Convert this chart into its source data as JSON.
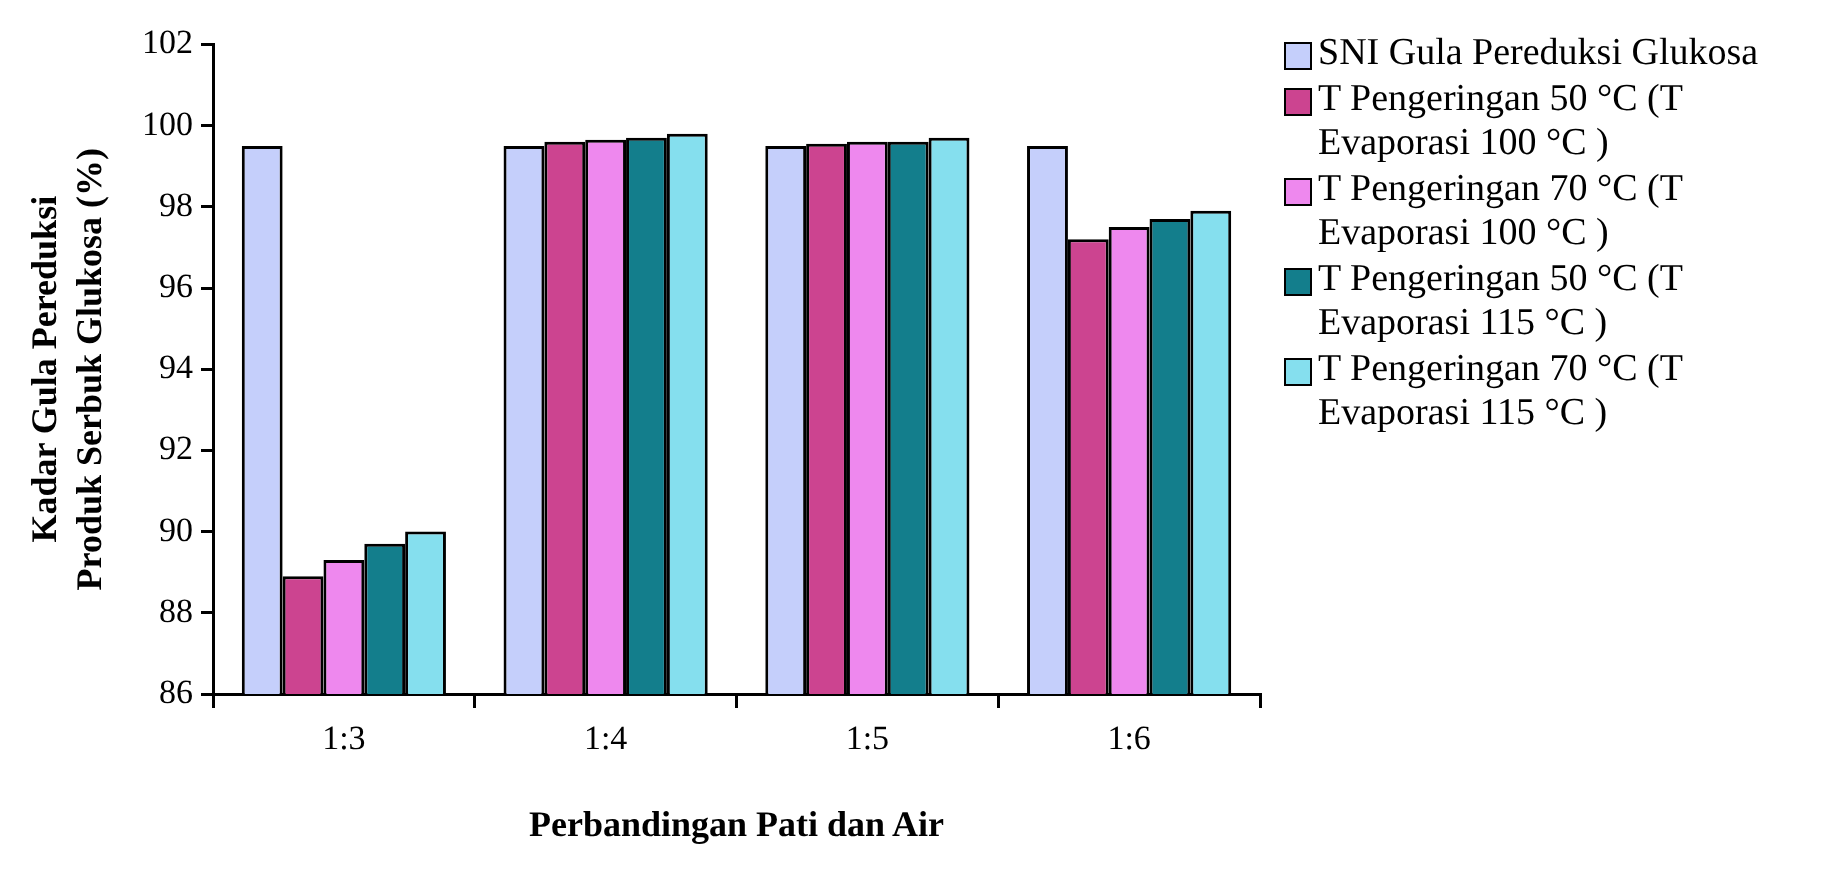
{
  "chart_data": {
    "type": "bar",
    "xlabel": "Perbandingan Pati dan Air",
    "ylabel": "Kadar Gula Pereduksi\nProduk Serbuk Glukosa (%)",
    "categories": [
      "1:3",
      "1:4",
      "1:5",
      "1:6"
    ],
    "series": [
      {
        "name": "SNI Gula Pereduksi Glukosa",
        "color": "#c5cffb",
        "values": [
          99.5,
          99.5,
          99.5,
          99.5
        ]
      },
      {
        "name": "T Pengeringan 50 °C (T Evaporasi 100 °C )",
        "color": "#cc4490",
        "values": [
          88.9,
          99.6,
          99.55,
          97.2
        ]
      },
      {
        "name": "T Pengeringan 70 °C (T Evaporasi 100 °C )",
        "color": "#ee88ee",
        "values": [
          89.3,
          99.65,
          99.6,
          97.5
        ]
      },
      {
        "name": "T Pengeringan 50 °C (T Evaporasi 115 °C )",
        "color": "#137e8c",
        "values": [
          89.7,
          99.7,
          99.6,
          97.7
        ]
      },
      {
        "name": "T Pengeringan 70 °C (T Evaporasi 115 °C )",
        "color": "#85dfee",
        "values": [
          90.0,
          99.8,
          99.7,
          97.9
        ]
      }
    ],
    "ylim": [
      86,
      102
    ],
    "yticks": [
      86,
      88,
      90,
      92,
      94,
      96,
      98,
      100,
      102
    ],
    "grid": false,
    "legend": "right"
  }
}
